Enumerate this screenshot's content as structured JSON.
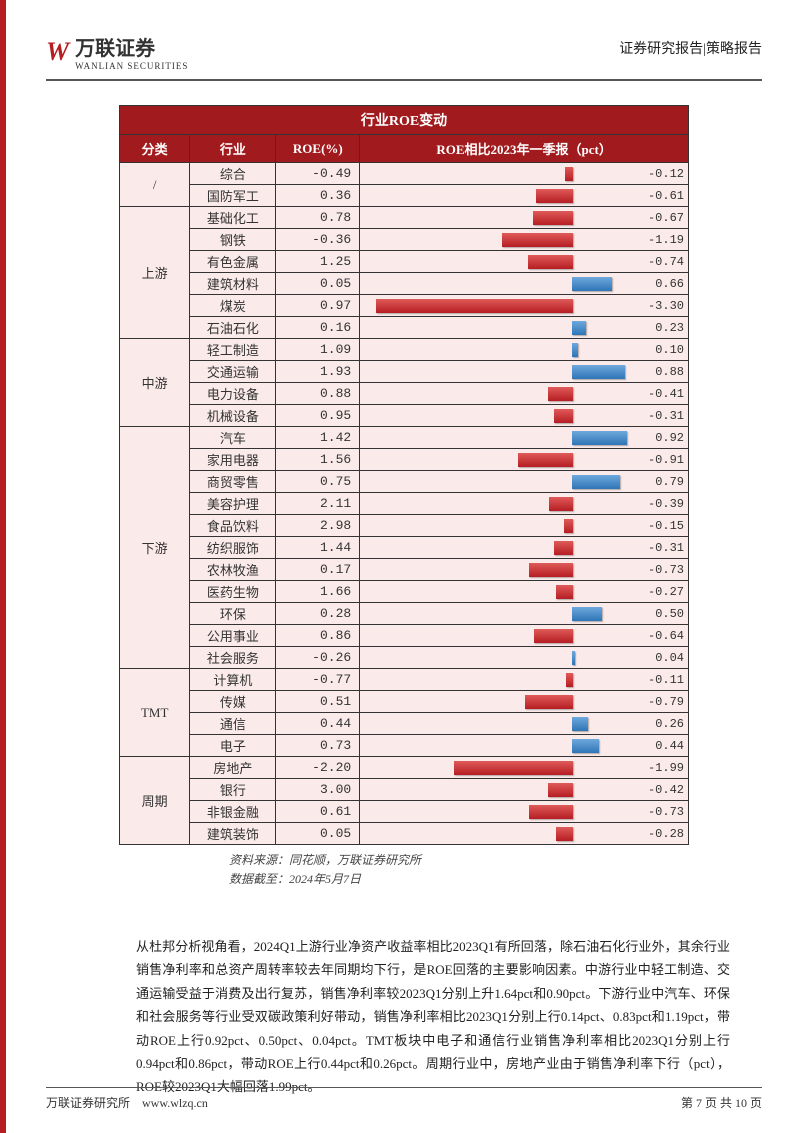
{
  "header": {
    "logo_mark": "W",
    "logo_cn": "万联证券",
    "logo_en": "WANLIAN SECURITIES",
    "right_text": "证券研究报告|策略报告"
  },
  "table": {
    "title": "行业ROE变动",
    "headers": {
      "cat": "分类",
      "ind": "行业",
      "roe": "ROE(%)",
      "chg": "ROE相比2023年一季报（pct）"
    },
    "bar_axis": {
      "min": -3.5,
      "max": 1.0,
      "zero": 0
    },
    "colors": {
      "neg_bar_top": "#e05a5a",
      "neg_bar_bottom": "#b51e22",
      "pos_bar_top": "#6fa8dc",
      "pos_bar_bottom": "#2e75b6",
      "cell_bg": "#fbeaea",
      "head_bg": "#a11b1e"
    },
    "groups": [
      {
        "cat": "/",
        "rows": [
          {
            "ind": "综合",
            "roe": "-0.49",
            "chg": -0.12
          },
          {
            "ind": "国防军工",
            "roe": "0.36",
            "chg": -0.61
          }
        ]
      },
      {
        "cat": "上游",
        "rows": [
          {
            "ind": "基础化工",
            "roe": "0.78",
            "chg": -0.67
          },
          {
            "ind": "钢铁",
            "roe": "-0.36",
            "chg": -1.19
          },
          {
            "ind": "有色金属",
            "roe": "1.25",
            "chg": -0.74
          },
          {
            "ind": "建筑材料",
            "roe": "0.05",
            "chg": 0.66
          },
          {
            "ind": "煤炭",
            "roe": "0.97",
            "chg": -3.3
          },
          {
            "ind": "石油石化",
            "roe": "0.16",
            "chg": 0.23
          }
        ]
      },
      {
        "cat": "中游",
        "rows": [
          {
            "ind": "轻工制造",
            "roe": "1.09",
            "chg": 0.1
          },
          {
            "ind": "交通运输",
            "roe": "1.93",
            "chg": 0.88
          },
          {
            "ind": "电力设备",
            "roe": "0.88",
            "chg": -0.41
          },
          {
            "ind": "机械设备",
            "roe": "0.95",
            "chg": -0.31
          }
        ]
      },
      {
        "cat": "下游",
        "rows": [
          {
            "ind": "汽车",
            "roe": "1.42",
            "chg": 0.92
          },
          {
            "ind": "家用电器",
            "roe": "1.56",
            "chg": -0.91
          },
          {
            "ind": "商贸零售",
            "roe": "0.75",
            "chg": 0.79
          },
          {
            "ind": "美容护理",
            "roe": "2.11",
            "chg": -0.39
          },
          {
            "ind": "食品饮料",
            "roe": "2.98",
            "chg": -0.15
          },
          {
            "ind": "纺织服饰",
            "roe": "1.44",
            "chg": -0.31
          },
          {
            "ind": "农林牧渔",
            "roe": "0.17",
            "chg": -0.73
          },
          {
            "ind": "医药生物",
            "roe": "1.66",
            "chg": -0.27
          },
          {
            "ind": "环保",
            "roe": "0.28",
            "chg": 0.5
          },
          {
            "ind": "公用事业",
            "roe": "0.86",
            "chg": -0.64
          },
          {
            "ind": "社会服务",
            "roe": "-0.26",
            "chg": 0.04
          }
        ]
      },
      {
        "cat": "TMT",
        "rows": [
          {
            "ind": "计算机",
            "roe": "-0.77",
            "chg": -0.11
          },
          {
            "ind": "传媒",
            "roe": "0.51",
            "chg": -0.79
          },
          {
            "ind": "通信",
            "roe": "0.44",
            "chg": 0.26
          },
          {
            "ind": "电子",
            "roe": "0.73",
            "chg": 0.44
          }
        ]
      },
      {
        "cat": "周期",
        "rows": [
          {
            "ind": "房地产",
            "roe": "-2.20",
            "chg": -1.99
          },
          {
            "ind": "银行",
            "roe": "3.00",
            "chg": -0.42
          },
          {
            "ind": "非银金融",
            "roe": "0.61",
            "chg": -0.73
          },
          {
            "ind": "建筑装饰",
            "roe": "0.05",
            "chg": -0.28
          }
        ]
      }
    ]
  },
  "source": {
    "line1": "资料来源：同花顺，万联证券研究所",
    "line2": "数据截至：2024年5月7日"
  },
  "body": "从杜邦分析视角看，2024Q1上游行业净资产收益率相比2023Q1有所回落，除石油石化行业外，其余行业销售净利率和总资产周转率较去年同期均下行，是ROE回落的主要影响因素。中游行业中轻工制造、交通运输受益于消费及出行复苏，销售净利率较2023Q1分别上升1.64pct和0.90pct。下游行业中汽车、环保和社会服务等行业受双碳政策利好带动，销售净利率相比2023Q1分别上行0.14pct、0.83pct和1.19pct，带动ROE上行0.92pct、0.50pct、0.04pct。TMT板块中电子和通信行业销售净利率相比2023Q1分别上行0.94pct和0.86pct，带动ROE上行0.44pct和0.26pct。周期行业中，房地产业由于销售净利率下行（pct），ROE较2023Q1大幅回落1.99pct。",
  "footer": {
    "left1": "万联证券研究所",
    "left2": "www.wlzq.cn",
    "right": "第 7 页 共 10 页"
  }
}
